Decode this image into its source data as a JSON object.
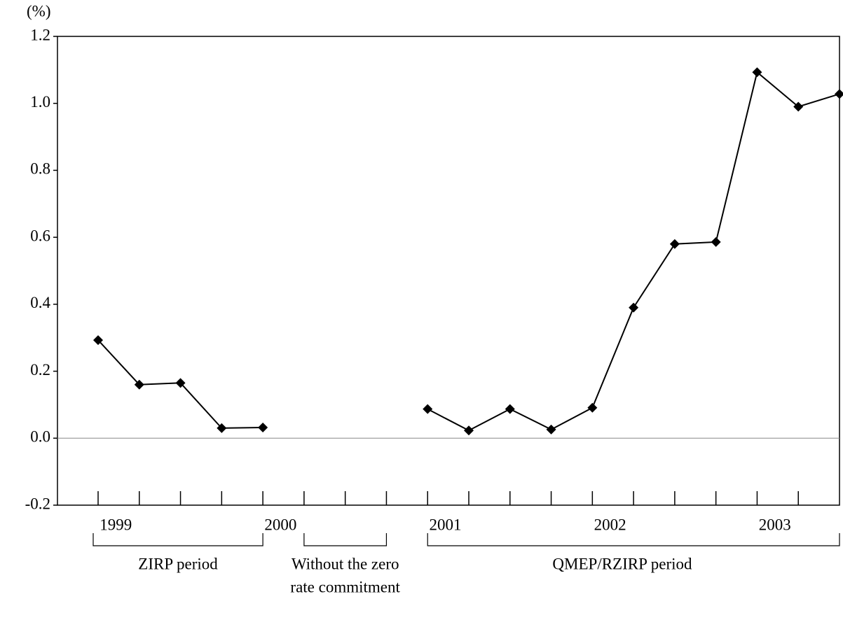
{
  "chart_data": {
    "type": "line",
    "y_unit_label": "(%)",
    "categories": [
      "1999",
      null,
      null,
      null,
      "2000",
      null,
      null,
      null,
      "2001",
      null,
      null,
      null,
      "2002",
      null,
      null,
      null,
      "2003",
      null,
      null
    ],
    "series": [
      {
        "name": "",
        "color": "#000000",
        "values": [
          0.293,
          0.16,
          0.165,
          0.03,
          0.032,
          null,
          null,
          null,
          0.087,
          0.023,
          0.087,
          0.026,
          0.091,
          0.39,
          0.58,
          0.586,
          1.093,
          0.99,
          1.028
        ]
      }
    ],
    "ylim": [
      -0.2,
      1.2
    ],
    "yticks": [
      -0.2,
      {
        "value": 0,
        "label": "0.0"
      },
      0.2,
      0.4,
      0.6,
      0.8,
      {
        "value": 1,
        "label": "1.0"
      },
      1.2
    ],
    "zero_line": true,
    "annotations": [
      {
        "lines": [
          "ZIRP period"
        ],
        "from": 0,
        "to": 4
      },
      {
        "lines": [
          "Without the zero",
          "rate commitment"
        ],
        "from": 5,
        "to": 7
      },
      {
        "lines": [
          "QMEP/RZIRP period"
        ],
        "from": 8,
        "to": 18
      }
    ]
  }
}
